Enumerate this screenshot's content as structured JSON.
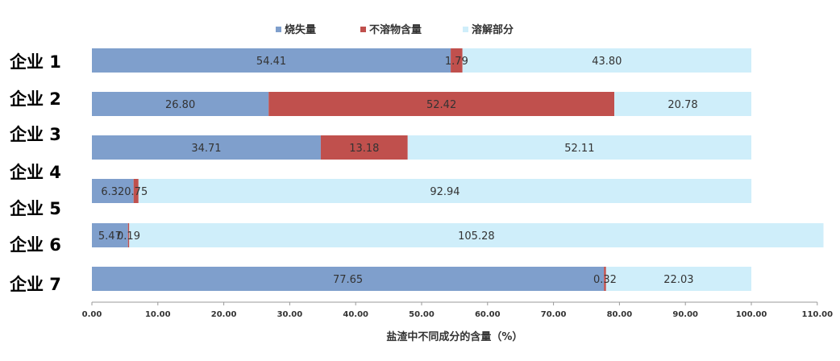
{
  "chart_data": {
    "type": "bar",
    "orientation": "horizontal",
    "stacked": true,
    "categories": [
      "企业 1",
      "企业 2",
      "企业 3",
      "企业 4",
      "企业 5",
      "企业 6",
      "企业 7"
    ],
    "series": [
      {
        "name": "烧失量",
        "color": "#7f9fcc",
        "values": [
          54.41,
          26.8,
          34.71,
          6.32,
          5.47,
          77.65,
          null
        ]
      },
      {
        "name": "不溶物含量",
        "color": "#c0504d",
        "values": [
          1.79,
          52.42,
          13.18,
          0.75,
          0.19,
          0.32,
          null
        ]
      },
      {
        "name": "溶解部分",
        "color": "#cfeefa",
        "values": [
          43.8,
          20.78,
          52.11,
          92.94,
          105.28,
          22.03,
          null
        ]
      }
    ],
    "value_labels": [
      [
        "54.41",
        "1.79",
        "43.80"
      ],
      [
        "26.80",
        "52.42",
        "20.78"
      ],
      [
        "34.71",
        "13.18",
        "52.11"
      ],
      [
        "6.32",
        "0.75",
        "92.94"
      ],
      [
        "5.47",
        "0.19",
        "105.28"
      ],
      [
        "77.65",
        "0.32",
        "22.03"
      ]
    ],
    "xlabel": "盐渣中不同成分的含量（%）",
    "ylabel": "",
    "title": "",
    "xlim": [
      0,
      110
    ],
    "xticks": [
      "0.00",
      "10.00",
      "20.00",
      "30.00",
      "40.00",
      "50.00",
      "60.00",
      "70.00",
      "80.00",
      "90.00",
      "100.00",
      "110.00"
    ],
    "grid": false,
    "legend_position": "top"
  }
}
